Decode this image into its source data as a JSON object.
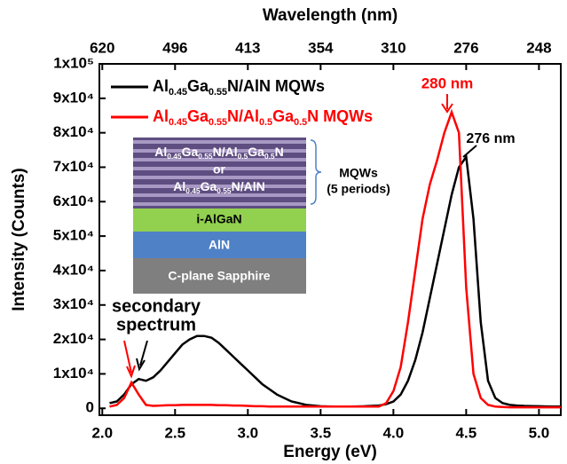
{
  "chart_data": {
    "type": "line",
    "x_label": "Energy (eV)",
    "x2_label": "Wavelength (nm)",
    "y_label": "Intensity (Counts)",
    "xlim": [
      1.98,
      5.15
    ],
    "ylim": [
      -2000,
      100000
    ],
    "xticks": [
      {
        "value": 2,
        "label": "2.0"
      },
      2.5,
      {
        "value": 3,
        "label": "3.0"
      },
      3.5,
      {
        "value": 4,
        "label": "4.0"
      },
      4.5,
      {
        "value": 5,
        "label": "5.0"
      }
    ],
    "x2ticks": [
      {
        "value": 2,
        "label": "620"
      },
      {
        "value": 2.5,
        "label": "496"
      },
      {
        "value": 3,
        "label": "413"
      },
      {
        "value": 3.5,
        "label": "354"
      },
      {
        "value": 4,
        "label": "310"
      },
      {
        "value": 4.5,
        "label": "276"
      },
      {
        "value": 5,
        "label": "248"
      }
    ],
    "yticks": [
      0,
      {
        "value": 10000,
        "label": "1x10⁴"
      },
      {
        "value": 20000,
        "label": "2x10⁴"
      },
      {
        "value": 30000,
        "label": "3x10⁴"
      },
      {
        "value": 40000,
        "label": "4x10⁴"
      },
      {
        "value": 50000,
        "label": "5x10⁴"
      },
      {
        "value": 60000,
        "label": "6x10⁴"
      },
      {
        "value": 70000,
        "label": "7x10⁴"
      },
      {
        "value": 80000,
        "label": "8x10⁴"
      },
      {
        "value": 90000,
        "label": "9x10⁴"
      },
      {
        "value": 100000,
        "label": "1x10⁵"
      }
    ],
    "legend": "upper left",
    "x": [
      2.05,
      2.1,
      2.15,
      2.2,
      2.25,
      2.3,
      2.35,
      2.4,
      2.45,
      2.5,
      2.55,
      2.6,
      2.65,
      2.7,
      2.75,
      2.8,
      2.85,
      2.9,
      2.95,
      3.0,
      3.05,
      3.1,
      3.15,
      3.2,
      3.25,
      3.3,
      3.35,
      3.4,
      3.45,
      3.5,
      3.55,
      3.6,
      3.65,
      3.7,
      3.75,
      3.8,
      3.85,
      3.9,
      3.95,
      4.0,
      4.05,
      4.1,
      4.15,
      4.2,
      4.25,
      4.3,
      4.35,
      4.4,
      4.45,
      4.5,
      4.55,
      4.6,
      4.65,
      4.7,
      4.75,
      4.8,
      4.85,
      4.9,
      4.95,
      5.0,
      5.05,
      5.1,
      5.15
    ],
    "series": [
      {
        "name": "Al0.45Ga0.55N/AlN MQWs",
        "color": "#000000",
        "values": [
          1500,
          2000,
          4000,
          7000,
          8500,
          8000,
          9000,
          11000,
          13500,
          16000,
          18500,
          20000,
          21000,
          21000,
          20500,
          19000,
          17000,
          15000,
          13000,
          11000,
          9000,
          7000,
          5500,
          4000,
          3000,
          2000,
          1500,
          1000,
          800,
          600,
          550,
          500,
          500,
          500,
          550,
          600,
          700,
          800,
          1200,
          2000,
          4000,
          8000,
          14000,
          22000,
          32000,
          42000,
          52000,
          62000,
          70000,
          73000,
          55000,
          25000,
          8000,
          3000,
          1500,
          1000,
          800,
          700,
          650,
          600,
          550,
          500,
          500
        ]
      },
      {
        "name": "Al0.45Ga0.55N/Al0.5Ga0.5N MQWs",
        "color": "#ff0000",
        "values": [
          500,
          1000,
          3000,
          7500,
          4000,
          1000,
          700,
          800,
          900,
          900,
          1000,
          1000,
          1000,
          1000,
          1000,
          900,
          900,
          800,
          800,
          700,
          600,
          600,
          500,
          500,
          500,
          500,
          500,
          500,
          500,
          500,
          500,
          500,
          500,
          500,
          500,
          500,
          500,
          500,
          1500,
          5000,
          12000,
          25000,
          40000,
          55000,
          65000,
          72000,
          80000,
          86000,
          80000,
          35000,
          10000,
          3000,
          1000,
          500,
          400,
          300,
          300,
          300,
          300,
          300,
          300,
          300,
          300
        ]
      }
    ],
    "annotations": [
      "280 nm",
      "276 nm",
      "secondary",
      "spectrum"
    ],
    "inset": {
      "mqw_a": "Al0.45Ga0.55N/Al0.5Ga0.5N",
      "or": "or",
      "mqw_b": "Al0.45Ga0.55N/AlN",
      "buffer": "i-AlGaN",
      "nucleation": "AlN",
      "substrate": "C-plane Sapphire",
      "brace_line1": "MQWs",
      "brace_line2": "(5 periods)"
    }
  }
}
